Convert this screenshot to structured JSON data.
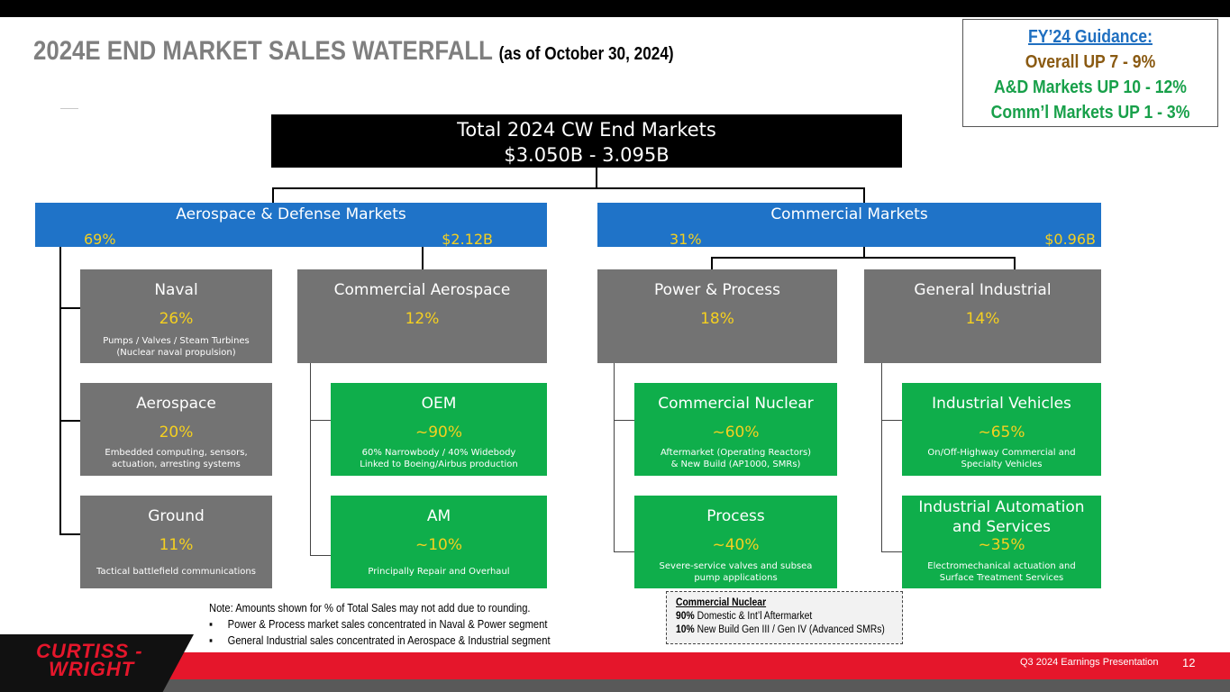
{
  "title": {
    "main": "2024E END MARKET SALES WATERFALL",
    "sub": "(as of October 30, 2024)"
  },
  "guidance": {
    "heading": "FY’24 Guidance:",
    "overall": "Overall UP 7 - 9%",
    "ad": "A&D Markets UP 10 - 12%",
    "comm": "Comm’l Markets UP 1 - 3%"
  },
  "total": {
    "line1": "Total 2024 CW End Markets",
    "line2": "$3.050B - 3.095B"
  },
  "ad_market": {
    "name": "Aerospace & Defense Markets",
    "pct": "69%",
    "amount": "$2.12B"
  },
  "comm_market": {
    "name": "Commercial Markets",
    "pct": "31%",
    "amount": "$0.96B"
  },
  "segments": {
    "naval": {
      "name": "Naval",
      "pct": "26%",
      "desc1": "Pumps / Valves / Steam Turbines",
      "desc2": "(Nuclear naval propulsion)"
    },
    "aerospace": {
      "name": "Aerospace",
      "pct": "20%",
      "desc1": "Embedded computing, sensors,",
      "desc2": "actuation, arresting systems"
    },
    "ground": {
      "name": "Ground",
      "pct": "11%",
      "desc1": "Tactical battlefield communications"
    },
    "comm_aero": {
      "name": "Commercial Aerospace",
      "pct": "12%"
    },
    "oem": {
      "name": "OEM",
      "pct": "~90%",
      "desc1": "60% Narrowbody / 40% Widebody",
      "desc2": "Linked to Boeing/Airbus production"
    },
    "am": {
      "name": "AM",
      "pct": "~10%",
      "desc1": "Principally Repair and Overhaul"
    },
    "power": {
      "name": "Power & Process",
      "pct": "18%"
    },
    "nuclear": {
      "name": "Commercial Nuclear",
      "pct": "~60%",
      "desc1": "Aftermarket (Operating Reactors)",
      "desc2": "& New Build (AP1000, SMRs)"
    },
    "process": {
      "name": "Process",
      "pct": "~40%",
      "desc1": "Severe-service valves and subsea",
      "desc2": "pump applications"
    },
    "general": {
      "name": "General Industrial",
      "pct": "14%"
    },
    "vehicles": {
      "name": "Industrial Vehicles",
      "pct": "~65%",
      "desc1": "On/Off-Highway Commercial and",
      "desc2": "Specialty Vehicles"
    },
    "automation": {
      "name1": "Industrial Automation",
      "name2": "and Services",
      "pct": "~35%",
      "desc1": "Electromechanical actuation and",
      "desc2": "Surface Treatment Services"
    }
  },
  "note": {
    "line1": "Note: Amounts shown for % of Total Sales may not add due to rounding.",
    "bullet1": "Power & Process market sales concentrated in Naval & Power segment",
    "bullet2": "General Industrial sales concentrated in Aerospace & Industrial segment"
  },
  "nuclear_box": {
    "heading": "Commercial Nuclear",
    "pct1": "90%",
    "text1": "Domestic & Int’l Aftermarket",
    "pct2": "10%",
    "text2": "New Build Gen III / Gen IV (Advanced SMRs)"
  },
  "footer": {
    "logo_line1": "CURTISS -",
    "logo_line2": "WRIGHT",
    "label": "Q3 2024 Earnings Presentation",
    "page": "12"
  },
  "colors": {
    "blue": "#1f73c8",
    "green": "#0fae4b",
    "gray": "#737373",
    "red": "#e5162b",
    "yellow": "#f5d020"
  }
}
